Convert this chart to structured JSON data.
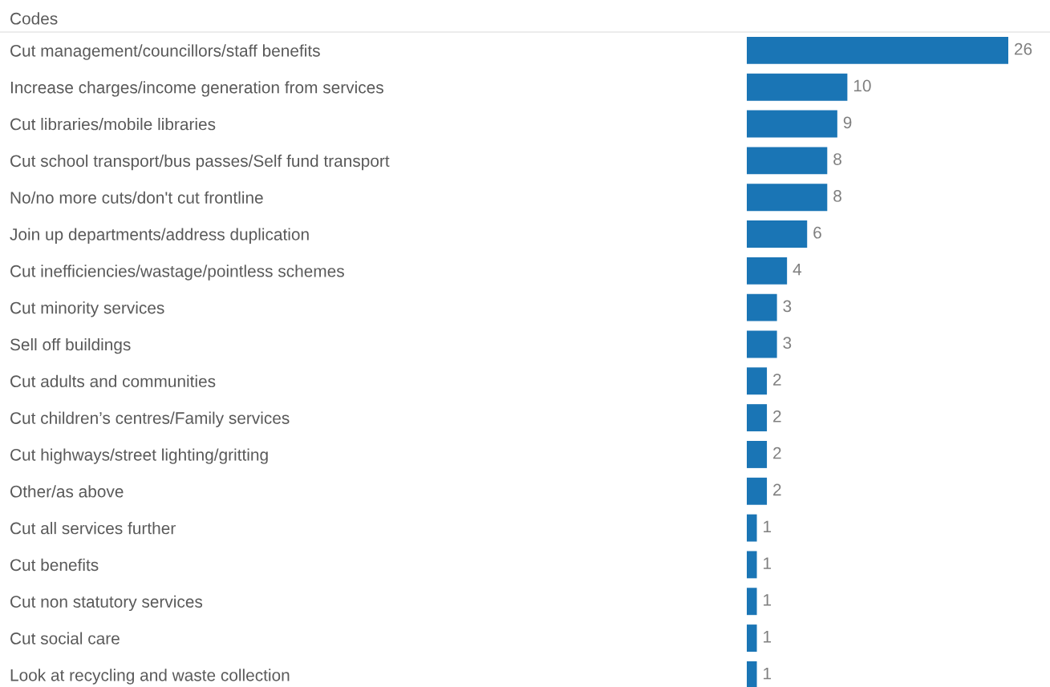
{
  "chart_data": {
    "type": "bar",
    "orientation": "horizontal",
    "ylabel": "Codes",
    "categories": [
      "Cut management/councillors/staff benefits",
      "Increase charges/income generation from services",
      "Cut libraries/mobile libraries",
      "Cut school transport/bus passes/Self fund transport",
      "No/no more cuts/don't cut frontline",
      "Join up departments/address duplication",
      "Cut inefficiencies/wastage/pointless schemes",
      "Cut minority services",
      "Sell off buildings",
      "Cut adults and communities",
      "Cut children’s centres/Family services",
      "Cut highways/street lighting/gritting",
      "Other/as above",
      "Cut all services further",
      "Cut benefits",
      "Cut non statutory services",
      "Cut social care",
      "Look at recycling and waste collection"
    ],
    "values": [
      26,
      10,
      9,
      8,
      8,
      6,
      4,
      3,
      3,
      2,
      2,
      2,
      2,
      1,
      1,
      1,
      1,
      1
    ],
    "color": "#1a75b5",
    "data_labels": true,
    "grid": false,
    "legend": false
  }
}
